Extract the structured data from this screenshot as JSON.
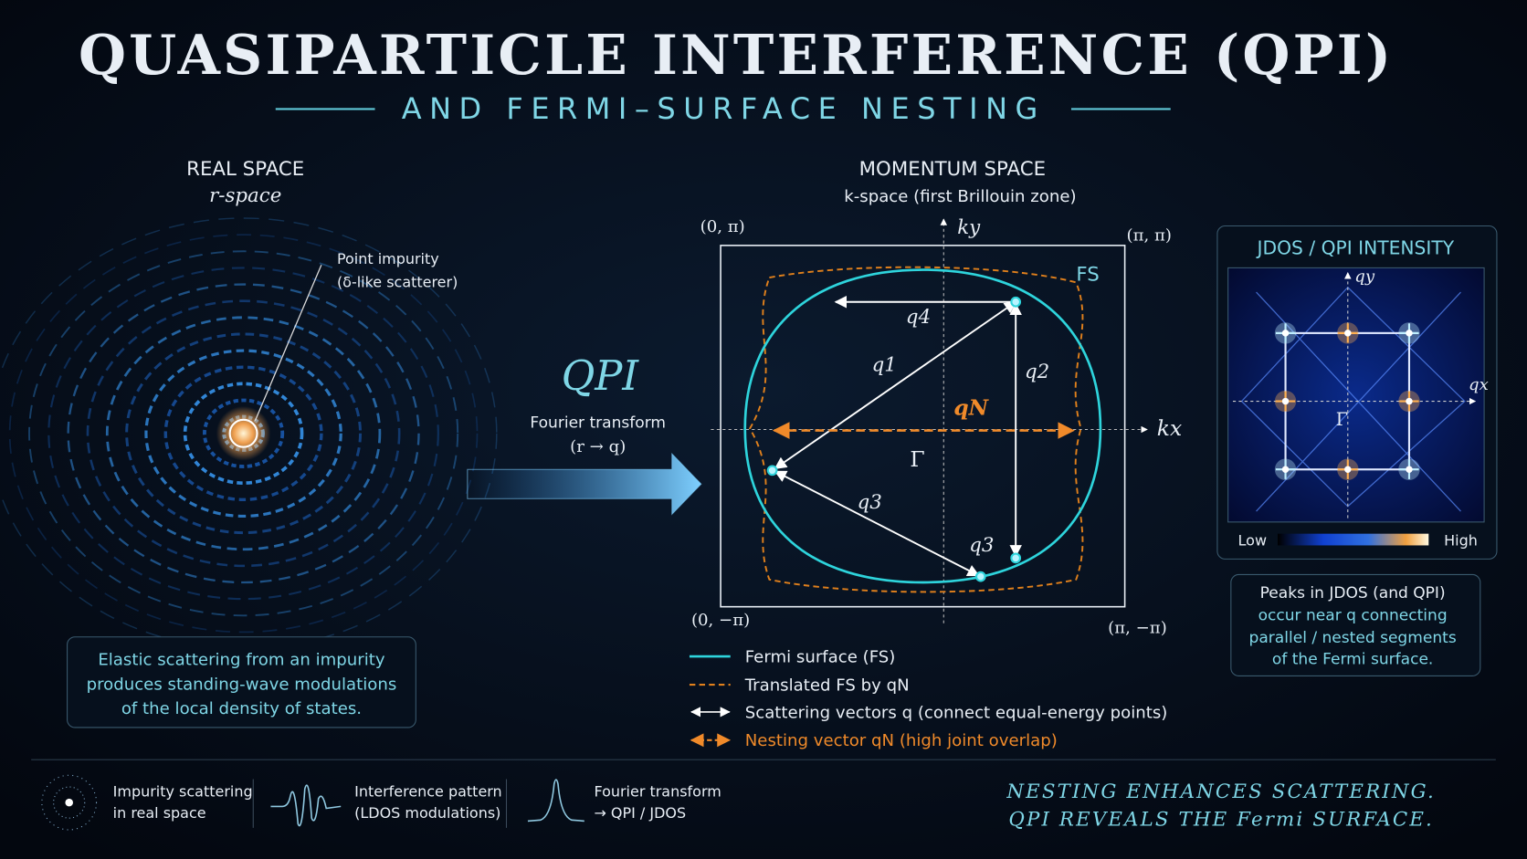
{
  "header": {
    "title": "QUASIPARTICLE INTERFERENCE (QPI)",
    "subtitle": "AND FERMI–SURFACE NESTING"
  },
  "real_space": {
    "heading": "REAL SPACE",
    "subheading": "r-space",
    "impurity_label": [
      "Point impurity",
      "(δ-like scatterer)"
    ],
    "note": [
      "Elastic scattering from an impurity",
      "produces standing-wave modulations",
      "of the local density of states."
    ]
  },
  "transform": {
    "label": "QPI",
    "caption": "Fourier transform",
    "mapping": "(r → q)"
  },
  "momentum_space": {
    "heading": "MOMENTUM SPACE",
    "subheading": "k-space (first Brillouin zone)",
    "corners": [
      "(0, π)",
      "(π, π)",
      "(0, −π)",
      "(π, −π)"
    ],
    "axes": [
      "kx",
      "ky"
    ],
    "origin": "Γ",
    "fs_label": "FS",
    "vectors": [
      "q4",
      "q1",
      "q2",
      "qN",
      "q3",
      "q3"
    ],
    "legend": [
      "Fermi surface (FS)",
      "Translated FS by qN",
      "Scattering vectors q (connect equal-energy points)",
      "Nesting vector qN (high joint overlap)"
    ]
  },
  "jdos": {
    "title": "JDOS / QPI INTENSITY",
    "axes": [
      "qx",
      "qy"
    ],
    "origin": "Γ",
    "scale": [
      "Low",
      "High"
    ],
    "note": [
      "Peaks in JDOS (and QPI)",
      "occur near q connecting",
      "parallel / nested segments",
      "of the Fermi surface."
    ]
  },
  "footer": {
    "items": [
      [
        "Impurity scattering",
        "in real space"
      ],
      [
        "Interference pattern",
        "(LDOS modulations)"
      ],
      [
        "Fourier transform",
        "→ QPI / JDOS"
      ]
    ],
    "tagline": [
      "NESTING ENHANCES SCATTERING.",
      "QPI REVEALS THE Fermi SURFACE."
    ]
  }
}
